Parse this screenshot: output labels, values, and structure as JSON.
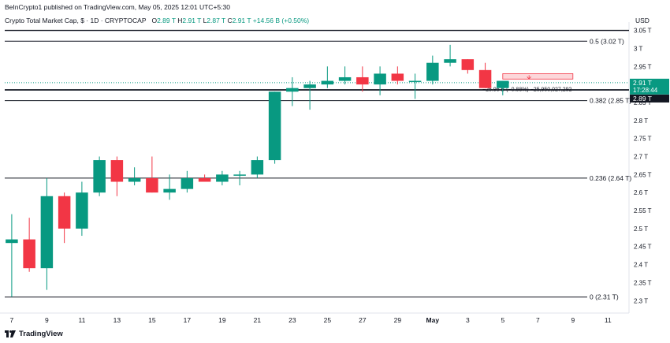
{
  "header": {
    "published": "BeInCrypto1 published on TradingView.com, May 05, 2025 12:01 UTC+5:30",
    "symbol": "Crypto Total Market Cap, $ · 1D · CRYPTOCAP",
    "o_label": "O",
    "o_value": "2.89 T",
    "h_label": "H",
    "h_value": "2.91 T",
    "l_label": "L",
    "l_value": "2.87 T",
    "c_label": "C",
    "c_value": "2.91 T",
    "change": "+14.56 B (+0.50%)"
  },
  "footer": {
    "brand": "TradingView"
  },
  "colors": {
    "up": "#089981",
    "down": "#f23645",
    "axis_text": "#131722",
    "level_line": "#131722"
  },
  "chart_data": {
    "type": "candlestick",
    "currency_label": "USD",
    "y_ticks": [
      "3.05 T",
      "3 T",
      "2.95 T",
      "2.85 T",
      "2.8 T",
      "2.75 T",
      "2.7 T",
      "2.65 T",
      "2.6 T",
      "2.55 T",
      "2.5 T",
      "2.45 T",
      "2.4 T",
      "2.35 T",
      "2.3 T"
    ],
    "y_tick_values": [
      3.05,
      3.0,
      2.95,
      2.85,
      2.8,
      2.75,
      2.7,
      2.65,
      2.6,
      2.55,
      2.5,
      2.45,
      2.4,
      2.35,
      2.3
    ],
    "ylim": [
      2.27,
      3.06
    ],
    "x_ticks": [
      "7",
      "9",
      "11",
      "13",
      "15",
      "17",
      "19",
      "21",
      "23",
      "25",
      "27",
      "29",
      "May",
      "3",
      "5",
      "7",
      "9",
      "11"
    ],
    "x_tick_days": [
      7,
      9,
      11,
      13,
      15,
      17,
      19,
      21,
      23,
      25,
      27,
      29,
      31,
      33,
      35,
      37,
      39,
      41
    ],
    "x_range_days": [
      6.6,
      42.2
    ],
    "candles": [
      {
        "d": 7,
        "o": 2.46,
        "h": 2.54,
        "l": 2.31,
        "c": 2.47
      },
      {
        "d": 8,
        "o": 2.47,
        "h": 2.53,
        "l": 2.38,
        "c": 2.39
      },
      {
        "d": 9,
        "o": 2.39,
        "h": 2.64,
        "l": 2.33,
        "c": 2.59
      },
      {
        "d": 10,
        "o": 2.59,
        "h": 2.6,
        "l": 2.46,
        "c": 2.5
      },
      {
        "d": 11,
        "o": 2.5,
        "h": 2.63,
        "l": 2.48,
        "c": 2.6
      },
      {
        "d": 12,
        "o": 2.6,
        "h": 2.7,
        "l": 2.59,
        "c": 2.69
      },
      {
        "d": 13,
        "o": 2.69,
        "h": 2.7,
        "l": 2.59,
        "c": 2.63
      },
      {
        "d": 14,
        "o": 2.63,
        "h": 2.67,
        "l": 2.62,
        "c": 2.64
      },
      {
        "d": 15,
        "o": 2.64,
        "h": 2.7,
        "l": 2.6,
        "c": 2.6
      },
      {
        "d": 16,
        "o": 2.6,
        "h": 2.65,
        "l": 2.58,
        "c": 2.61
      },
      {
        "d": 17,
        "o": 2.61,
        "h": 2.66,
        "l": 2.6,
        "c": 2.64
      },
      {
        "d": 18,
        "o": 2.64,
        "h": 2.65,
        "l": 2.63,
        "c": 2.63
      },
      {
        "d": 19,
        "o": 2.63,
        "h": 2.66,
        "l": 2.62,
        "c": 2.65
      },
      {
        "d": 20,
        "o": 2.65,
        "h": 2.66,
        "l": 2.62,
        "c": 2.65
      },
      {
        "d": 21,
        "o": 2.65,
        "h": 2.7,
        "l": 2.64,
        "c": 2.69
      },
      {
        "d": 22,
        "o": 2.69,
        "h": 2.88,
        "l": 2.68,
        "c": 2.88
      },
      {
        "d": 23,
        "o": 2.88,
        "h": 2.92,
        "l": 2.84,
        "c": 2.89
      },
      {
        "d": 24,
        "o": 2.89,
        "h": 2.91,
        "l": 2.83,
        "c": 2.9
      },
      {
        "d": 25,
        "o": 2.9,
        "h": 2.95,
        "l": 2.89,
        "c": 2.91
      },
      {
        "d": 26,
        "o": 2.91,
        "h": 2.95,
        "l": 2.9,
        "c": 2.92
      },
      {
        "d": 27,
        "o": 2.92,
        "h": 2.95,
        "l": 2.88,
        "c": 2.9
      },
      {
        "d": 28,
        "o": 2.9,
        "h": 2.95,
        "l": 2.87,
        "c": 2.93
      },
      {
        "d": 29,
        "o": 2.93,
        "h": 2.95,
        "l": 2.9,
        "c": 2.91
      },
      {
        "d": 30,
        "o": 2.91,
        "h": 2.93,
        "l": 2.86,
        "c": 2.91
      },
      {
        "d": 31,
        "o": 2.91,
        "h": 2.98,
        "l": 2.9,
        "c": 2.96
      },
      {
        "d": 32,
        "o": 2.96,
        "h": 3.01,
        "l": 2.95,
        "c": 2.97
      },
      {
        "d": 33,
        "o": 2.97,
        "h": 2.97,
        "l": 2.93,
        "c": 2.94
      },
      {
        "d": 34,
        "o": 2.94,
        "h": 2.96,
        "l": 2.89,
        "c": 2.89
      },
      {
        "d": 35,
        "o": 2.89,
        "h": 2.91,
        "l": 2.87,
        "c": 2.91
      }
    ],
    "levels": [
      {
        "label": "0.5 (3.02 T)",
        "value": 3.02
      },
      {
        "label": "0.382 (2.85 T)",
        "value": 2.855
      },
      {
        "label": "0.236 (2.64 T)",
        "value": 2.64
      },
      {
        "label": "0 (2.31 T)",
        "value": 2.31
      }
    ],
    "current_price": {
      "value": 2.905,
      "label": "2.91 T",
      "countdown": "17:28:44"
    },
    "prev_close": {
      "value": 2.885,
      "label": "2.89 T"
    },
    "top_line_value": 3.05,
    "measure_box": {
      "d_start": 35,
      "d_end": 39,
      "top": 2.93,
      "bottom": 2.915,
      "text": "−25.95 B (−0.88%) −25,950,027,292"
    }
  }
}
